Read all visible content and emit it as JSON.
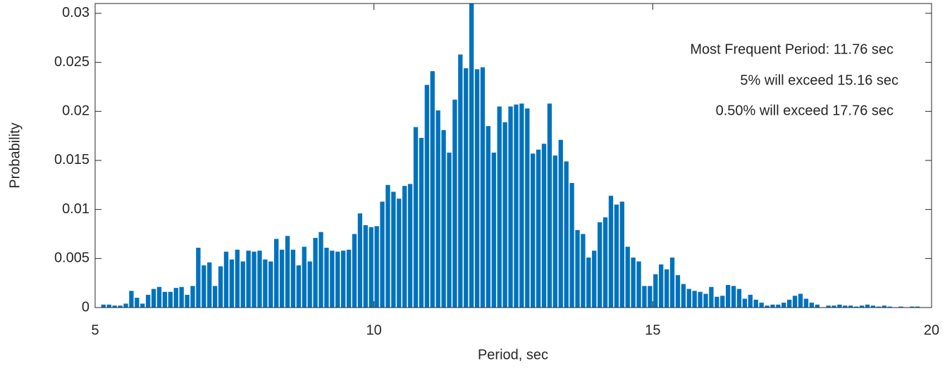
{
  "chart_data": {
    "type": "histogram",
    "xlabel": "Period, sec",
    "ylabel": "Probability",
    "color": "#0072bd",
    "annotations": [
      "Most Frequent Period: 11.76 sec",
      "5% will exceed 15.16 sec",
      "0.50% will exceed 17.76 sec"
    ],
    "xlim": [
      5,
      20
    ],
    "xticks": [
      5,
      10,
      15,
      20
    ],
    "ylim": [
      0,
      0.031
    ],
    "yticks": [
      0,
      0.005,
      0.01,
      0.015,
      0.02,
      0.025,
      0.03
    ],
    "bins": [
      5.1,
      5.2,
      5.3,
      5.4,
      5.5,
      5.6,
      5.7,
      5.8,
      5.9,
      6.0,
      6.1,
      6.2,
      6.3,
      6.4,
      6.5,
      6.6,
      6.7,
      6.8,
      6.9,
      7.0,
      7.1,
      7.2,
      7.3,
      7.4,
      7.5,
      7.6,
      7.7,
      7.8,
      7.9,
      8.0,
      8.1,
      8.2,
      8.3,
      8.4,
      8.5,
      8.6,
      8.7,
      8.8,
      8.9,
      9.0,
      9.1,
      9.2,
      9.3,
      9.4,
      9.5,
      9.6,
      9.7,
      9.8,
      9.9,
      10.0,
      10.1,
      10.2,
      10.3,
      10.4,
      10.5,
      10.6,
      10.7,
      10.8,
      10.9,
      11.0,
      11.1,
      11.2,
      11.3,
      11.4,
      11.5,
      11.6,
      11.7,
      11.8,
      11.9,
      12.0,
      12.1,
      12.2,
      12.3,
      12.4,
      12.5,
      12.6,
      12.7,
      12.8,
      12.9,
      13.0,
      13.1,
      13.2,
      13.3,
      13.4,
      13.5,
      13.6,
      13.7,
      13.8,
      13.9,
      14.0,
      14.1,
      14.2,
      14.3,
      14.4,
      14.5,
      14.6,
      14.7,
      14.8,
      14.9,
      15.0,
      15.1,
      15.2,
      15.3,
      15.4,
      15.5,
      15.6,
      15.7,
      15.8,
      15.9,
      16.0,
      16.1,
      16.2,
      16.3,
      16.4,
      16.5,
      16.6,
      16.7,
      16.8,
      16.9,
      17.0,
      17.1,
      17.2,
      17.3,
      17.4,
      17.5,
      17.6,
      17.7,
      17.8,
      17.9,
      18.0,
      18.1,
      18.2,
      18.3,
      18.4,
      18.5,
      18.6,
      18.7,
      18.8,
      18.9,
      19.0,
      19.1,
      19.2,
      19.3,
      19.4,
      19.5,
      19.6,
      19.7,
      19.8,
      19.9
    ],
    "values": [
      0.0003,
      0.0003,
      0.0002,
      0.0002,
      0.0004,
      0.0017,
      0.001,
      0.0004,
      0.0013,
      0.0019,
      0.0021,
      0.0016,
      0.0016,
      0.002,
      0.0021,
      0.0013,
      0.0022,
      0.0061,
      0.0043,
      0.0046,
      0.0022,
      0.0042,
      0.0057,
      0.0049,
      0.0059,
      0.0047,
      0.0058,
      0.0057,
      0.0058,
      0.0049,
      0.0047,
      0.007,
      0.0059,
      0.0073,
      0.0059,
      0.0043,
      0.0062,
      0.0047,
      0.0071,
      0.0077,
      0.0061,
      0.0058,
      0.0057,
      0.0058,
      0.0059,
      0.0075,
      0.0096,
      0.0084,
      0.0082,
      0.0083,
      0.0108,
      0.0125,
      0.0118,
      0.0111,
      0.0124,
      0.0126,
      0.0184,
      0.0173,
      0.0227,
      0.0241,
      0.0201,
      0.0181,
      0.0158,
      0.0212,
      0.0258,
      0.0244,
      0.032,
      0.0243,
      0.0245,
      0.0185,
      0.0158,
      0.0205,
      0.0189,
      0.0205,
      0.0207,
      0.0208,
      0.0203,
      0.0157,
      0.0161,
      0.0167,
      0.0208,
      0.0155,
      0.0171,
      0.0149,
      0.0127,
      0.0079,
      0.0075,
      0.0051,
      0.0058,
      0.0087,
      0.0092,
      0.0114,
      0.0105,
      0.0108,
      0.0062,
      0.0051,
      0.0047,
      0.0022,
      0.0022,
      0.0034,
      0.0044,
      0.0039,
      0.0051,
      0.0033,
      0.0024,
      0.0019,
      0.0017,
      0.0016,
      0.0014,
      0.0021,
      0.0011,
      0.0012,
      0.0023,
      0.0022,
      0.0019,
      0.0009,
      0.0013,
      0.0008,
      0.0005,
      0.0002,
      0.0003,
      0.0003,
      0.0005,
      0.0008,
      0.0012,
      0.0014,
      0.0009,
      0.0005,
      0.0003,
      0,
      0.0002,
      0.0002,
      0.0003,
      0.0002,
      0.0002,
      0.0001,
      0.0002,
      0.0003,
      0.0002,
      0.0001,
      0.0002,
      0.0001,
      0,
      0.0001,
      0,
      0.0001,
      0.0001,
      0
    ]
  }
}
